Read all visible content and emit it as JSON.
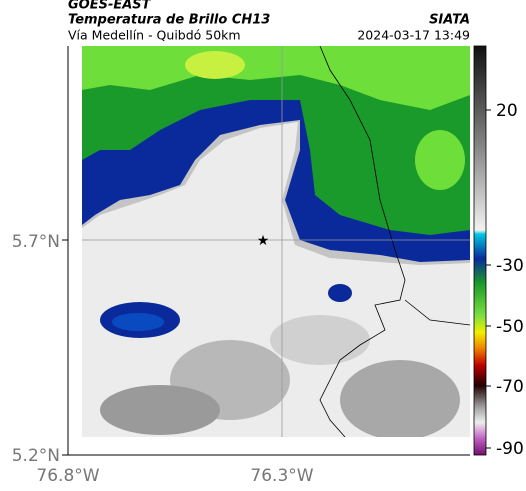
{
  "header": {
    "source": "GOES-EAST",
    "title": "Temperatura de Brillo CH13",
    "agency": "SIATA",
    "subtitle": "Vía Medellín - Quibdó 50km",
    "datetime": "2024-03-17 13:49"
  },
  "axes": {
    "lat_labels": [
      "5.7°N",
      "5.2°N"
    ],
    "lon_labels": [
      "76.8°W",
      "76.3°W"
    ]
  },
  "colorbar": {
    "ticks": [
      "20",
      "-30",
      "-50",
      "-70",
      "-90"
    ]
  }
}
